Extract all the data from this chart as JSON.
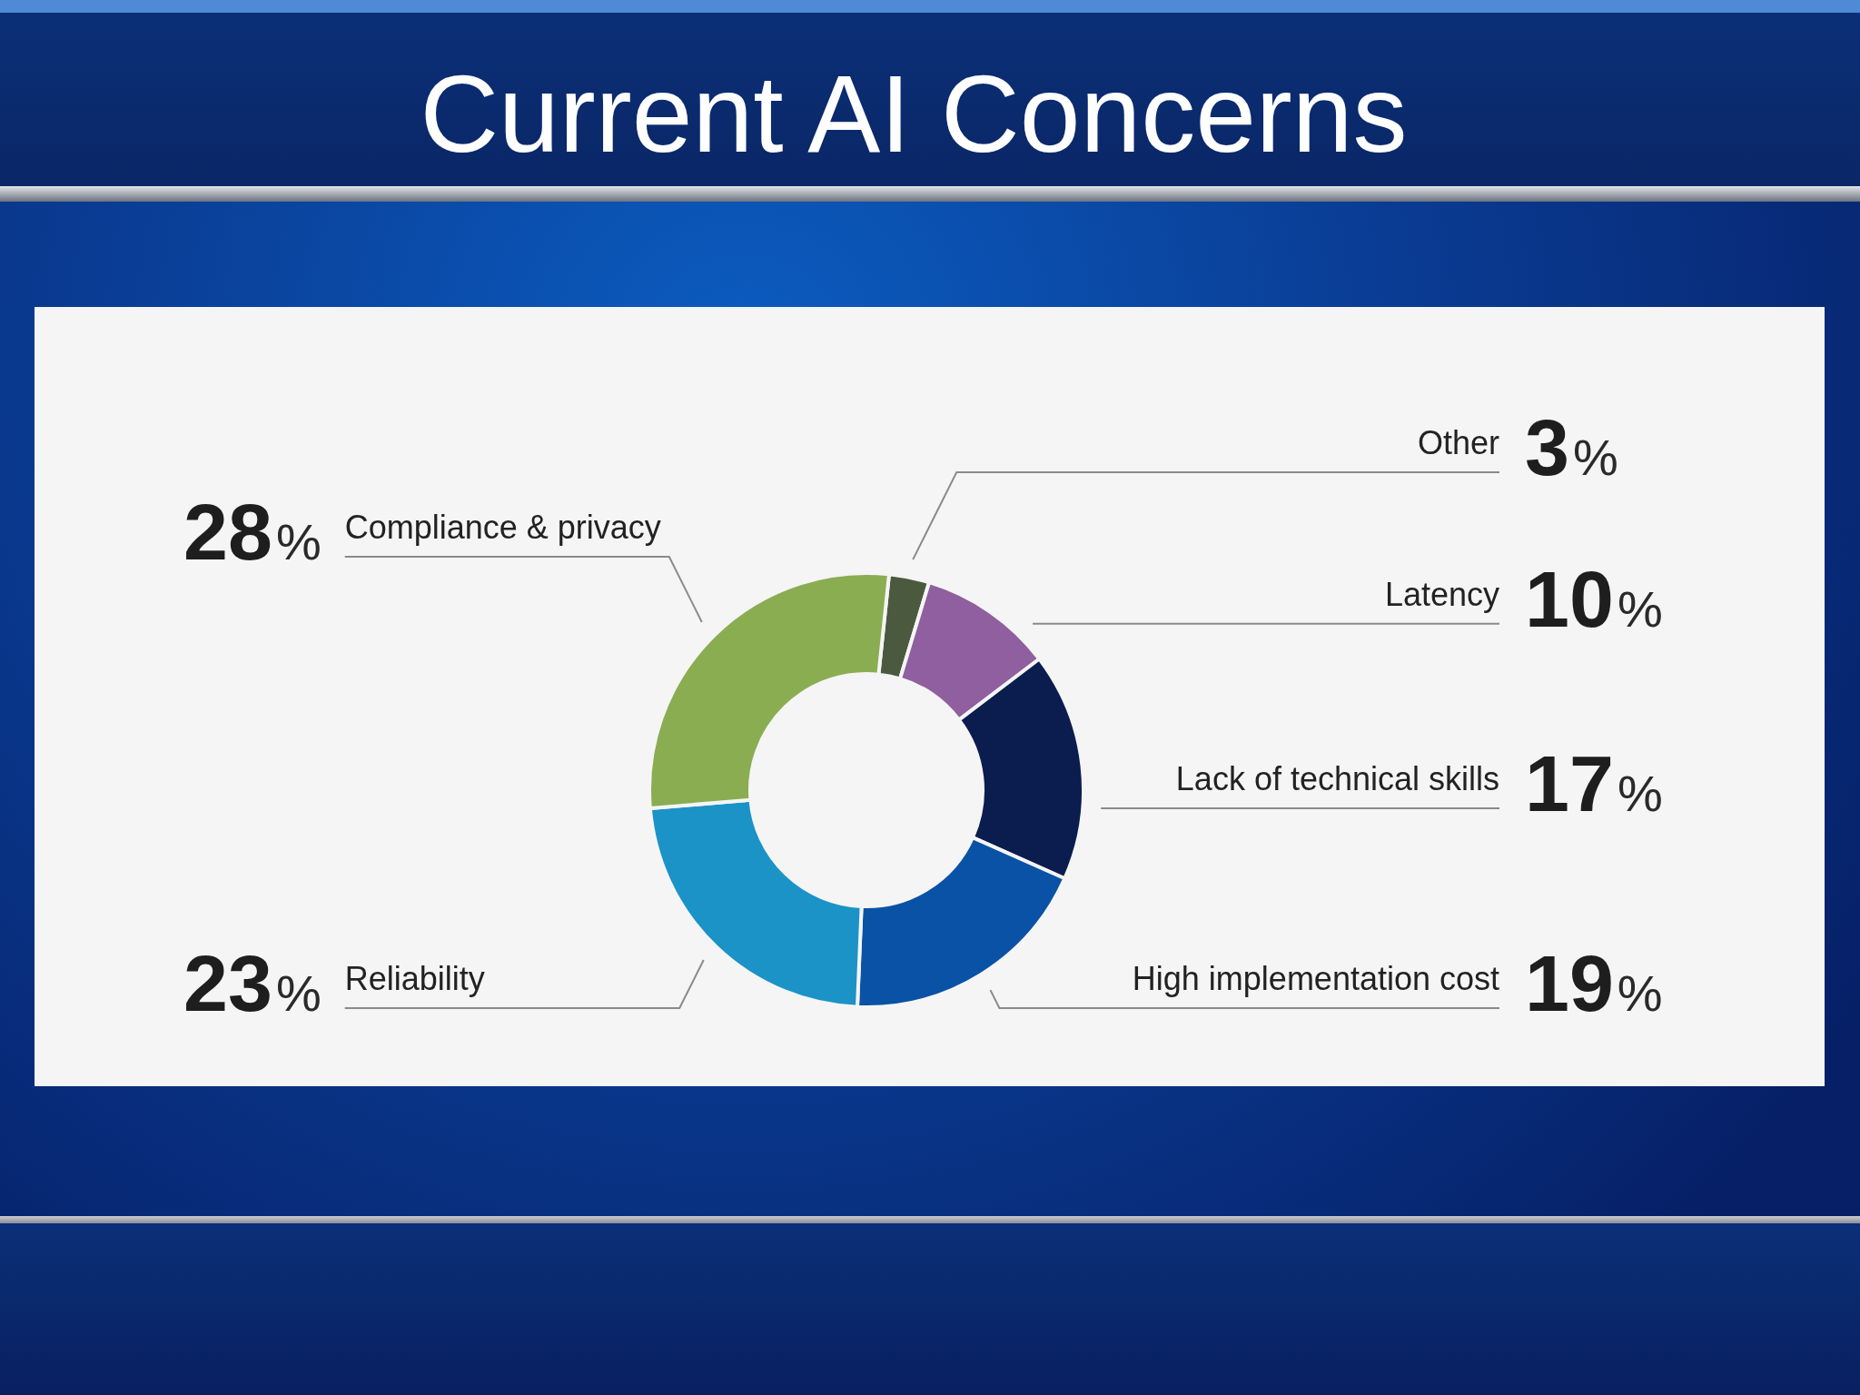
{
  "chart_data": {
    "type": "donut",
    "title": "Current AI Concerns",
    "categories": [
      "Other",
      "Latency",
      "Lack of technical skills",
      "High implementation cost",
      "Reliability",
      "Compliance & privacy"
    ],
    "values": [
      3,
      10,
      17,
      19,
      23,
      28
    ],
    "colors": [
      "#4b5a3f",
      "#8f5fa0",
      "#0b1d4f",
      "#0a52a6",
      "#1b93c7",
      "#8aad52"
    ],
    "value_labels": [
      "3%",
      "10%",
      "17%",
      "19%",
      "23%",
      "28%"
    ]
  }
}
